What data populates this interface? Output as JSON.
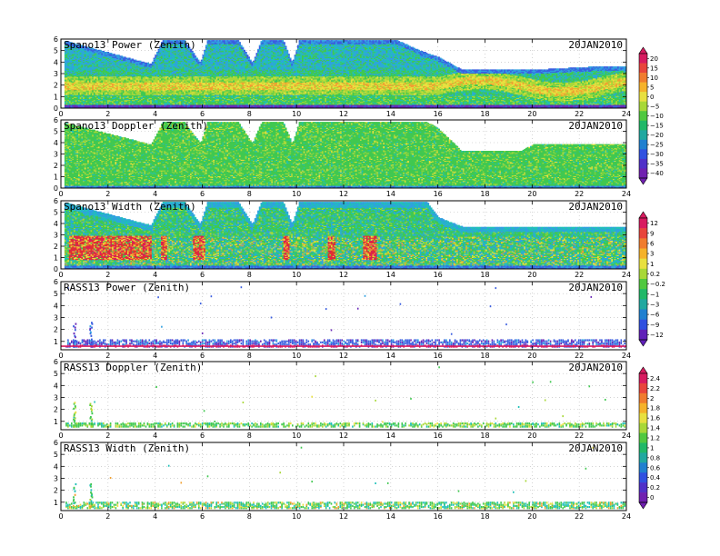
{
  "chart_data": [
    {
      "type": "heatmap",
      "title": "Spano13 Power (Zenith)",
      "date": "20JAN2010",
      "x_ticks": [
        "0",
        "2",
        "4",
        "6",
        "8",
        "10",
        "12",
        "14",
        "16",
        "18",
        "20",
        "22",
        "24"
      ],
      "y_ticks": [
        "0",
        "1",
        "2",
        "3",
        "4",
        "5",
        "6"
      ],
      "xlim": [
        0,
        24
      ],
      "ylim": [
        0,
        6
      ],
      "grid": "dotted",
      "profile": {
        "kind": "spano",
        "top_pairs": [
          [
            0,
            5.9
          ],
          [
            3.8,
            3.8
          ],
          [
            4.3,
            5.9
          ],
          [
            5.2,
            5.9
          ],
          [
            5.9,
            3.9
          ],
          [
            6.2,
            5.9
          ],
          [
            7.5,
            5.9
          ],
          [
            8.1,
            3.9
          ],
          [
            8.5,
            5.9
          ],
          [
            9.4,
            5.9
          ],
          [
            9.8,
            3.9
          ],
          [
            10.1,
            5.9
          ],
          [
            14.2,
            5.9
          ],
          [
            15.3,
            4.9
          ],
          [
            16,
            4.4
          ],
          [
            17,
            3.3
          ],
          [
            20,
            3.3
          ],
          [
            23,
            3.6
          ],
          [
            24,
            3.6
          ]
        ],
        "wash_from": 16
      }
    },
    {
      "type": "heatmap",
      "title": "Spano13 Doppler (Zenith)",
      "date": "20JAN2010",
      "x_ticks": [
        "0",
        "2",
        "4",
        "6",
        "8",
        "10",
        "12",
        "14",
        "16",
        "18",
        "20",
        "22",
        "24"
      ],
      "y_ticks": [
        "0",
        "1",
        "2",
        "3",
        "4",
        "5",
        "6"
      ],
      "xlim": [
        0,
        24
      ],
      "ylim": [
        0,
        6
      ],
      "grid": "dotted",
      "profile": {
        "kind": "doppler",
        "top_pairs": [
          [
            0,
            5.8
          ],
          [
            3.8,
            3.8
          ],
          [
            4.3,
            5.8
          ],
          [
            5.2,
            5.8
          ],
          [
            5.9,
            3.9
          ],
          [
            6.2,
            5.8
          ],
          [
            7.5,
            5.8
          ],
          [
            8.1,
            3.9
          ],
          [
            8.5,
            5.8
          ],
          [
            9.4,
            5.8
          ],
          [
            9.8,
            3.9
          ],
          [
            10.1,
            5.8
          ],
          [
            15.5,
            5.8
          ],
          [
            16,
            5.2
          ],
          [
            17,
            3.2
          ],
          [
            19.5,
            3.2
          ],
          [
            20,
            3.8
          ],
          [
            24,
            3.8
          ]
        ]
      }
    },
    {
      "type": "heatmap",
      "title": "Spano13 Width (Zenith)",
      "date": "20JAN2010",
      "x_ticks": [
        "0",
        "2",
        "4",
        "6",
        "8",
        "10",
        "12",
        "14",
        "16",
        "18",
        "20",
        "22",
        "24"
      ],
      "y_ticks": [
        "0",
        "1",
        "2",
        "3",
        "4",
        "5",
        "6"
      ],
      "xlim": [
        0,
        24
      ],
      "ylim": [
        0,
        6
      ],
      "grid": "dotted",
      "profile": {
        "kind": "width",
        "top_pairs": [
          [
            0,
            5.9
          ],
          [
            3.8,
            3.8
          ],
          [
            4.3,
            5.9
          ],
          [
            5.2,
            5.9
          ],
          [
            5.9,
            3.9
          ],
          [
            6.2,
            5.9
          ],
          [
            7.5,
            5.9
          ],
          [
            8.1,
            3.9
          ],
          [
            8.5,
            5.9
          ],
          [
            9.4,
            5.9
          ],
          [
            9.8,
            3.9
          ],
          [
            10.1,
            5.9
          ],
          [
            15.5,
            5.9
          ],
          [
            16,
            4.5
          ],
          [
            17,
            3.7
          ],
          [
            24,
            3.7
          ]
        ],
        "hot_spots": [
          [
            0.3,
            3.8
          ],
          [
            4.2,
            4.5
          ],
          [
            5.6,
            6.1
          ],
          [
            9.4,
            9.7
          ],
          [
            11.3,
            11.6
          ],
          [
            12.8,
            13.4
          ]
        ]
      }
    },
    {
      "type": "scatter",
      "title": "RASS13 Power (Zenith)",
      "date": "20JAN2010",
      "x_ticks": [
        "0",
        "2",
        "4",
        "6",
        "8",
        "10",
        "12",
        "14",
        "16",
        "18",
        "20",
        "22",
        "24"
      ],
      "y_ticks": [
        "1",
        "2",
        "3",
        "4",
        "5",
        "6"
      ],
      "xlim": [
        0,
        24
      ],
      "ylim": [
        0.3,
        6
      ],
      "grid": "dotted",
      "profile": {
        "kind": "rass",
        "band": [
          0.55,
          1.1
        ],
        "spikes": [
          0.55,
          1.25
        ],
        "palette": "power"
      }
    },
    {
      "type": "scatter",
      "title": "RASS13 Doppler (Zenith)",
      "date": "20JAN2010",
      "x_ticks": [
        "0",
        "2",
        "4",
        "6",
        "8",
        "10",
        "12",
        "14",
        "16",
        "18",
        "20",
        "22",
        "24"
      ],
      "y_ticks": [
        "1",
        "2",
        "3",
        "4",
        "5",
        "6"
      ],
      "xlim": [
        0,
        24
      ],
      "ylim": [
        0.3,
        6
      ],
      "grid": "dotted",
      "profile": {
        "kind": "rass",
        "band": [
          0.55,
          0.9
        ],
        "spikes": [
          0.55,
          1.25
        ],
        "palette": "doppler"
      }
    },
    {
      "type": "scatter",
      "title": "RASS13 Width (Zenith)",
      "date": "20JAN2010",
      "x_ticks": [
        "0",
        "2",
        "4",
        "6",
        "8",
        "10",
        "12",
        "14",
        "16",
        "18",
        "20",
        "22",
        "24"
      ],
      "y_ticks": [
        "1",
        "2",
        "3",
        "4",
        "5",
        "6"
      ],
      "xlim": [
        0,
        24
      ],
      "ylim": [
        0.3,
        6
      ],
      "grid": "dotted",
      "profile": {
        "kind": "rass",
        "band": [
          0.5,
          0.95
        ],
        "spikes": [
          0.55,
          1.25
        ],
        "palette": "width"
      }
    }
  ],
  "colorbars": [
    {
      "labels": [
        "20",
        "15",
        "10",
        "5",
        "0",
        "−5",
        "−10",
        "−15",
        "−20",
        "−25",
        "−30",
        "−35",
        "−40"
      ],
      "colors": [
        "#d81b60",
        "#e8453c",
        "#f07c2e",
        "#f5b22a",
        "#e8e040",
        "#a8d838",
        "#50c840",
        "#20b868",
        "#20a8a0",
        "#2080d0",
        "#3050e0",
        "#5030c8",
        "#7020b0"
      ]
    },
    {
      "labels": [
        "12",
        "9",
        "6",
        "3",
        "1",
        "0.2",
        "−0.2",
        "−1",
        "−3",
        "−6",
        "−9",
        "−12"
      ],
      "colors": [
        "#d81b60",
        "#e8453c",
        "#f07c2e",
        "#f5b22a",
        "#e8e040",
        "#a8d838",
        "#50c840",
        "#20b868",
        "#20a8a0",
        "#2080d0",
        "#3050e0",
        "#6020b8"
      ]
    },
    {
      "labels": [
        "2.4",
        "2.2",
        "2",
        "1.8",
        "1.6",
        "1.4",
        "1.2",
        "1",
        "0.8",
        "0.6",
        "0.4",
        "0.2",
        "0"
      ],
      "colors": [
        "#d81b60",
        "#e8453c",
        "#f07c2e",
        "#f5b22a",
        "#e8e040",
        "#a8d838",
        "#50c840",
        "#20b868",
        "#20a8a0",
        "#2080d0",
        "#3050e0",
        "#5030c8",
        "#7020b0"
      ]
    }
  ]
}
